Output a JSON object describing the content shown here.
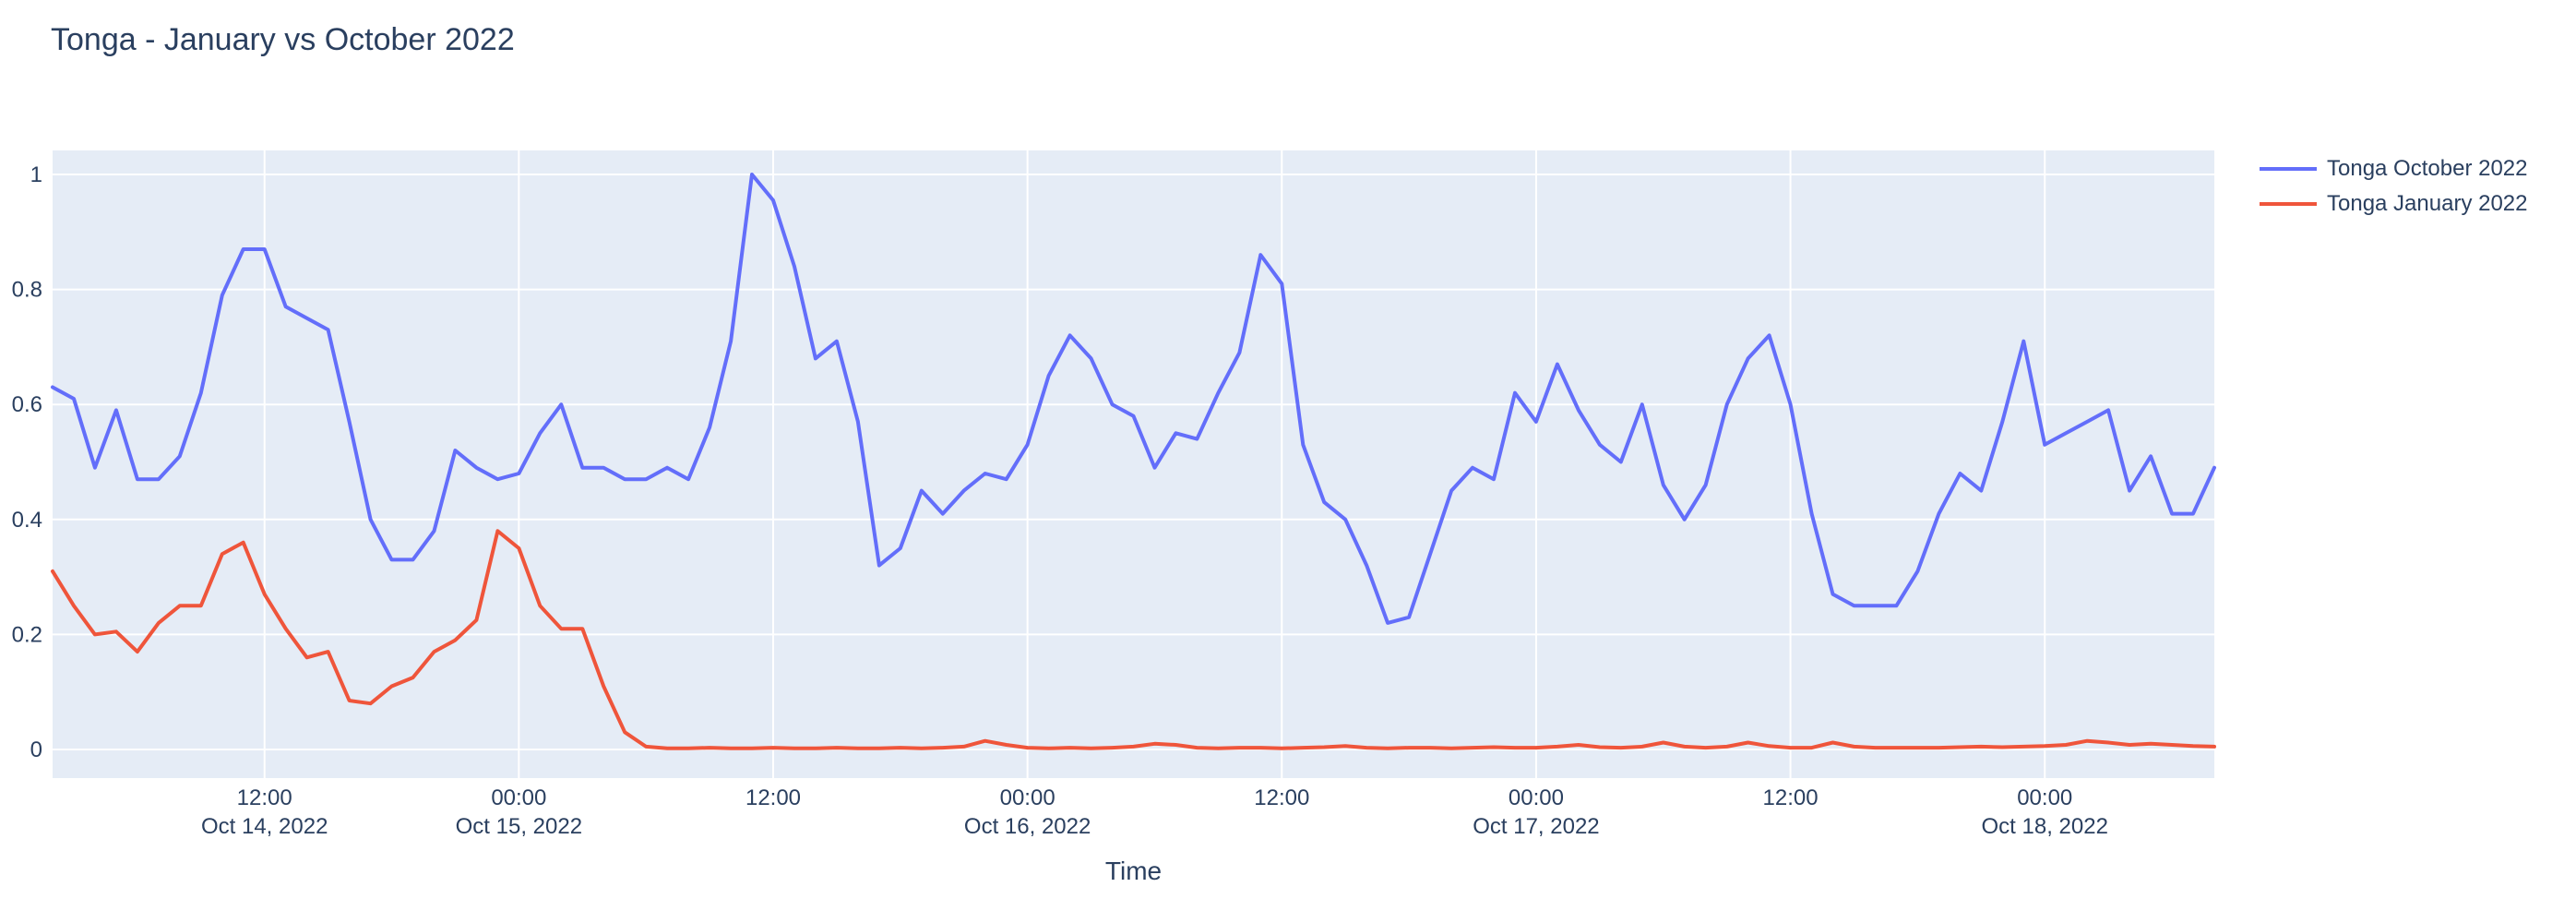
{
  "title": "Tonga - January vs October 2022",
  "chart_data": {
    "type": "line",
    "title": "Tonga - January vs October 2022",
    "xlabel": "Time",
    "ylabel": "",
    "grid": true,
    "plot_bg": "#e5ecf6",
    "grid_color": "#ffffff",
    "font_color": "#2a3f5f",
    "legend_position": "top-right-outside",
    "ylim": [
      -0.05,
      1.04
    ],
    "yticks": [
      {
        "v": 0,
        "label": "0"
      },
      {
        "v": 0.2,
        "label": "0.2"
      },
      {
        "v": 0.4,
        "label": "0.4"
      },
      {
        "v": 0.6,
        "label": "0.6"
      },
      {
        "v": 0.8,
        "label": "0.8"
      },
      {
        "v": 1,
        "label": "1"
      }
    ],
    "x_start": "Oct 14, 2022 02:00",
    "x_end": "Oct 18, 2022 08:00",
    "x_interval_hours": 1,
    "xticks": [
      {
        "h": 10,
        "time": "12:00",
        "date": "Oct 14, 2022"
      },
      {
        "h": 22,
        "time": "00:00",
        "date": "Oct 15, 2022"
      },
      {
        "h": 34,
        "time": "12:00",
        "date": ""
      },
      {
        "h": 46,
        "time": "00:00",
        "date": "Oct 16, 2022"
      },
      {
        "h": 58,
        "time": "12:00",
        "date": ""
      },
      {
        "h": 70,
        "time": "00:00",
        "date": "Oct 17, 2022"
      },
      {
        "h": 82,
        "time": "12:00",
        "date": ""
      },
      {
        "h": 94,
        "time": "00:00",
        "date": "Oct 18, 2022"
      }
    ],
    "series": [
      {
        "name": "Tonga October 2022",
        "color": "#636efa",
        "values": [
          0.63,
          0.61,
          0.49,
          0.59,
          0.47,
          0.47,
          0.51,
          0.62,
          0.79,
          0.87,
          0.87,
          0.77,
          0.75,
          0.73,
          0.57,
          0.4,
          0.33,
          0.33,
          0.38,
          0.52,
          0.49,
          0.47,
          0.48,
          0.55,
          0.6,
          0.49,
          0.49,
          0.47,
          0.47,
          0.49,
          0.47,
          0.56,
          0.71,
          1.0,
          0.955,
          0.84,
          0.68,
          0.71,
          0.57,
          0.32,
          0.35,
          0.45,
          0.41,
          0.45,
          0.48,
          0.47,
          0.53,
          0.65,
          0.72,
          0.68,
          0.6,
          0.58,
          0.49,
          0.55,
          0.54,
          0.62,
          0.69,
          0.86,
          0.81,
          0.53,
          0.43,
          0.4,
          0.32,
          0.22,
          0.23,
          0.34,
          0.45,
          0.49,
          0.47,
          0.62,
          0.57,
          0.67,
          0.59,
          0.53,
          0.5,
          0.6,
          0.46,
          0.4,
          0.46,
          0.6,
          0.68,
          0.72,
          0.6,
          0.41,
          0.27,
          0.25,
          0.25,
          0.25,
          0.31,
          0.41,
          0.48,
          0.45,
          0.57,
          0.71,
          0.53,
          0.55,
          0.57,
          0.59,
          0.45,
          0.51,
          0.41,
          0.41,
          0.49
        ]
      },
      {
        "name": "Tonga January 2022",
        "color": "#ef553b",
        "values": [
          0.31,
          0.25,
          0.2,
          0.205,
          0.17,
          0.22,
          0.25,
          0.25,
          0.34,
          0.36,
          0.27,
          0.21,
          0.16,
          0.17,
          0.085,
          0.08,
          0.11,
          0.125,
          0.17,
          0.19,
          0.225,
          0.38,
          0.35,
          0.25,
          0.21,
          0.21,
          0.11,
          0.03,
          0.005,
          0.002,
          0.002,
          0.003,
          0.002,
          0.002,
          0.003,
          0.002,
          0.002,
          0.003,
          0.002,
          0.002,
          0.003,
          0.002,
          0.003,
          0.005,
          0.015,
          0.008,
          0.003,
          0.002,
          0.003,
          0.002,
          0.003,
          0.005,
          0.01,
          0.008,
          0.003,
          0.002,
          0.003,
          0.003,
          0.002,
          0.003,
          0.004,
          0.006,
          0.003,
          0.002,
          0.003,
          0.003,
          0.002,
          0.003,
          0.004,
          0.003,
          0.003,
          0.005,
          0.008,
          0.004,
          0.003,
          0.005,
          0.012,
          0.005,
          0.003,
          0.005,
          0.012,
          0.006,
          0.003,
          0.003,
          0.012,
          0.005,
          0.003,
          0.003,
          0.003,
          0.003,
          0.004,
          0.005,
          0.004,
          0.005,
          0.006,
          0.008,
          0.015,
          0.012,
          0.008,
          0.01,
          0.008,
          0.006,
          0.005
        ]
      }
    ]
  }
}
